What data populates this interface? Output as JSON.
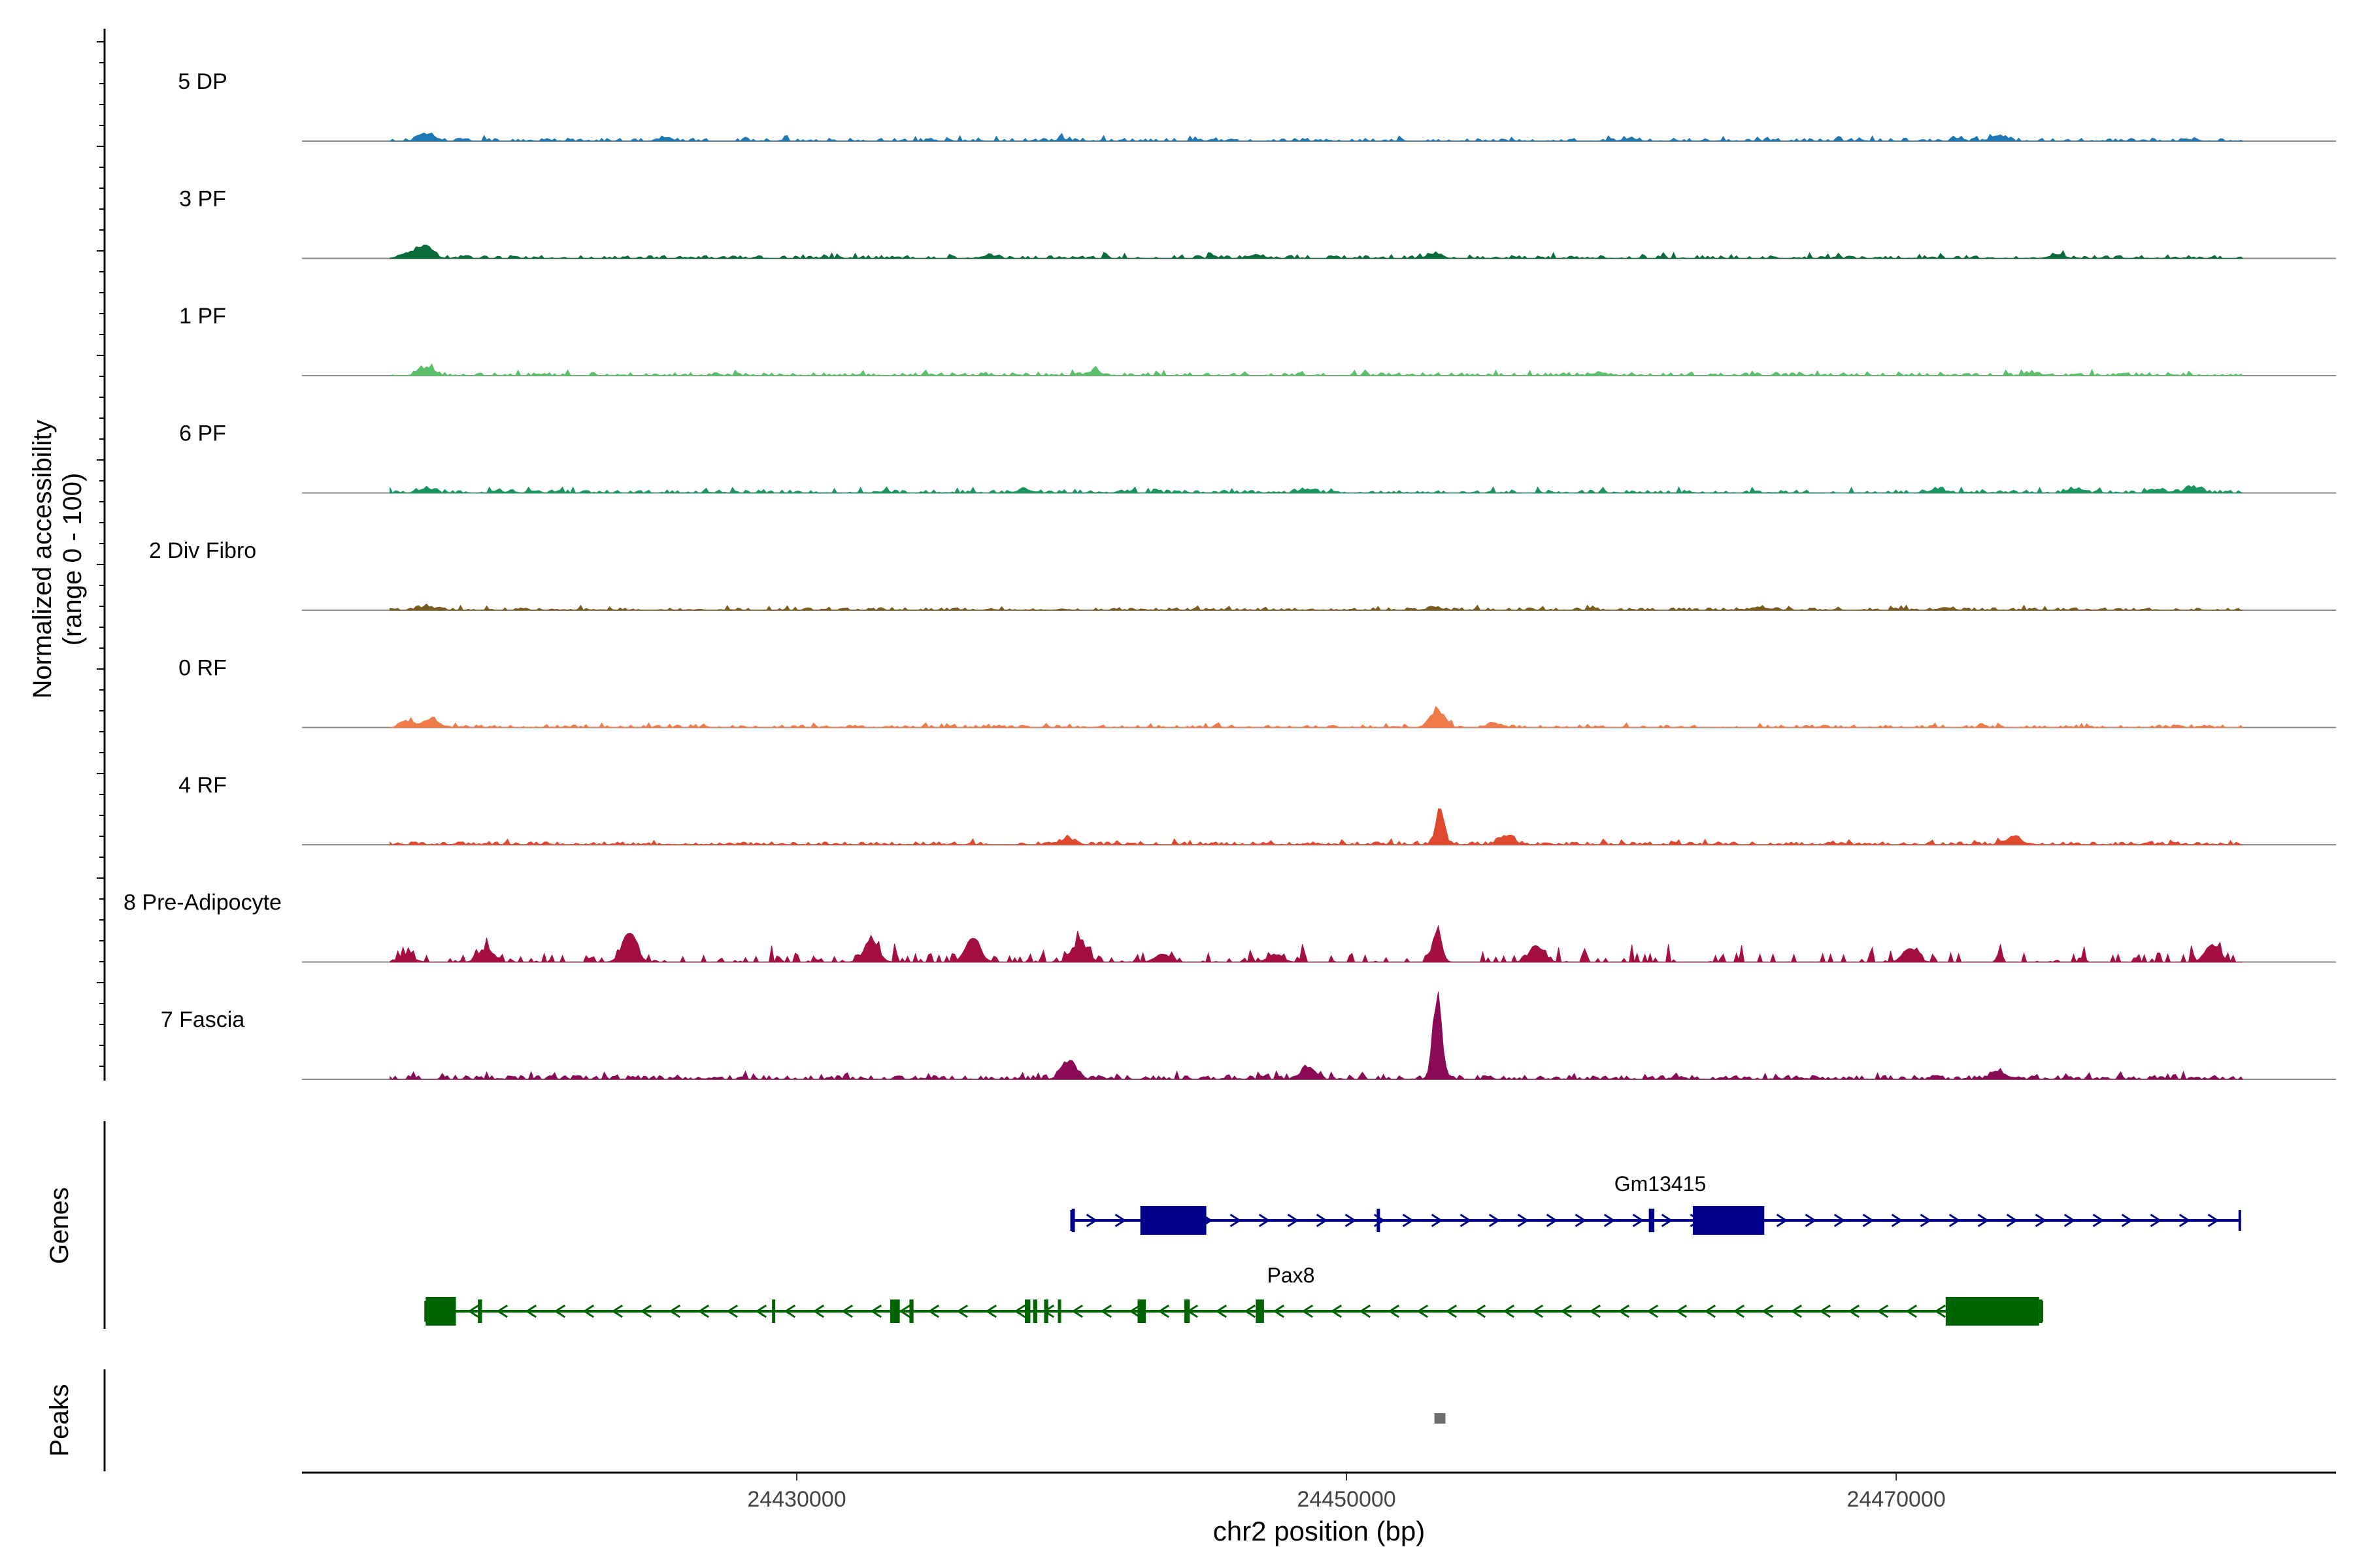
{
  "chart_data": {
    "type": "coverage",
    "xlabel": "chr2 position (bp)",
    "ylabel_line1": "Normalized accessibility",
    "ylabel_line2": "(range 0 - 100)",
    "genes_label": "Genes",
    "peaks_label": "Peaks",
    "xlim": [
      24412000,
      24486000
    ],
    "x_ticks": [
      24430000,
      24450000,
      24470000
    ],
    "x_tick_labels": [
      "24430000",
      "24450000",
      "24470000"
    ],
    "track_range": [
      0,
      100
    ],
    "tracks": [
      {
        "name": "5 DP",
        "color": "#1f78b4",
        "density": 0.55,
        "noise": 3,
        "peaks": [
          [
            24416500,
            7
          ],
          [
            24473700,
            6
          ],
          [
            24425200,
            3
          ],
          [
            24439700,
            2
          ],
          [
            24460300,
            3
          ]
        ]
      },
      {
        "name": "3 PF",
        "color": "#0a6b3a",
        "density": 0.55,
        "noise": 3,
        "peaks": [
          [
            24416500,
            14
          ],
          [
            24415800,
            6
          ],
          [
            24453200,
            5
          ],
          [
            24475800,
            4
          ],
          [
            24446700,
            4
          ],
          [
            24437000,
            3
          ]
        ]
      },
      {
        "name": "1 PF",
        "color": "#5cbf6a",
        "density": 0.6,
        "noise": 3,
        "peaks": [
          [
            24416500,
            9
          ],
          [
            24440800,
            5
          ],
          [
            24459200,
            3
          ],
          [
            24475000,
            3
          ]
        ]
      },
      {
        "name": "6 PF",
        "color": "#1a9460",
        "density": 0.62,
        "noise": 3,
        "peaks": [
          [
            24416500,
            5
          ],
          [
            24448500,
            4
          ],
          [
            24471500,
            4
          ],
          [
            24476500,
            4
          ],
          [
            24480800,
            6
          ],
          [
            24479500,
            4
          ],
          [
            24438300,
            4
          ]
        ]
      },
      {
        "name": "2 Div Fibro",
        "color": "#7a5c1e",
        "density": 0.6,
        "noise": 2.5,
        "peaks": [
          [
            24416500,
            4
          ],
          [
            24453200,
            3
          ],
          [
            24465000,
            3
          ],
          [
            24471800,
            3
          ]
        ]
      },
      {
        "name": "0 RF",
        "color": "#f07b4a",
        "density": 0.55,
        "noise": 2.5,
        "peaks": [
          [
            24453300,
            20
          ],
          [
            24416700,
            10
          ],
          [
            24415900,
            6
          ],
          [
            24455400,
            4
          ]
        ]
      },
      {
        "name": "4 RF",
        "color": "#e0492f",
        "density": 0.6,
        "noise": 3,
        "peaks": [
          [
            24453400,
            38
          ],
          [
            24455800,
            10
          ],
          [
            24439900,
            6
          ],
          [
            24474300,
            9
          ]
        ]
      },
      {
        "name": "8 Pre-Adipocyte",
        "color": "#a50f3f",
        "density": 0.32,
        "noise": 9,
        "peaks": [
          [
            24453300,
            37
          ],
          [
            24415800,
            8
          ],
          [
            24418700,
            16
          ],
          [
            24423900,
            30
          ],
          [
            24432700,
            24
          ],
          [
            24436400,
            28
          ],
          [
            24440300,
            25
          ],
          [
            24443300,
            10
          ],
          [
            24447400,
            9
          ],
          [
            24456900,
            18
          ],
          [
            24470500,
            15
          ],
          [
            24481500,
            20
          ]
        ]
      },
      {
        "name": "7 Fascia",
        "color": "#8a0a57",
        "density": 0.68,
        "noise": 4,
        "peaks": [
          [
            24453300,
            90
          ],
          [
            24439900,
            20
          ],
          [
            24448600,
            13
          ],
          [
            24473700,
            10
          ]
        ]
      }
    ],
    "genes": [
      {
        "name": "Gm13415",
        "strand": "+",
        "color": "#00008b",
        "start": 24440000,
        "end": 24482500,
        "exons": [
          [
            24440000,
            24440120
          ],
          [
            24442500,
            24444900
          ],
          [
            24451100,
            24451200
          ],
          [
            24461000,
            24461200
          ],
          [
            24462600,
            24465200
          ]
        ]
      },
      {
        "name": "Pax8",
        "strand": "-",
        "color": "#006400",
        "start": 24416500,
        "end": 24475300,
        "exons": [
          [
            24416500,
            24417600
          ],
          [
            24418400,
            24418550
          ],
          [
            24429100,
            24429200
          ],
          [
            24433400,
            24433750
          ],
          [
            24434100,
            24434250
          ],
          [
            24438300,
            24438500
          ],
          [
            24438600,
            24438750
          ],
          [
            24439000,
            24439150
          ],
          [
            24439500,
            24439600
          ],
          [
            24442400,
            24442700
          ],
          [
            24444100,
            24444300
          ],
          [
            24446700,
            24447000
          ],
          [
            24471800,
            24475200
          ],
          [
            24475200,
            24475300
          ]
        ]
      }
    ],
    "peaks_regions": [
      [
        24453200,
        24453600
      ]
    ]
  }
}
